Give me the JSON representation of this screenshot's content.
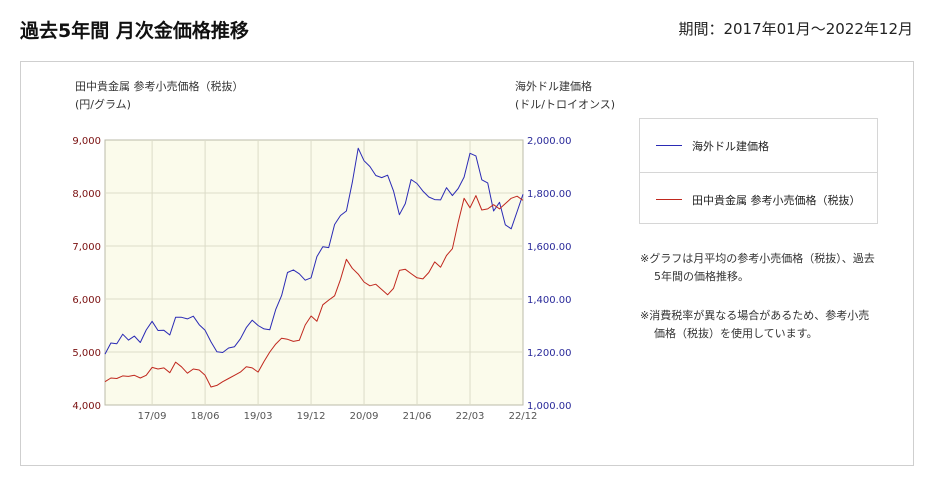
{
  "header": {
    "title": "過去5年間 月次金価格推移",
    "period": "期間：2017年01月～2022年12月"
  },
  "notes": [
    "※グラフは月平均の参考小売価格（税抜）、過去5年間の価格推移。",
    "※消費税率が異なる場合があるため、参考小売価格（税抜）を使用しています。"
  ],
  "colors": {
    "plot_bg": "#fbfbeb",
    "grid": "#dcdcc8",
    "usd": "#2b2bb5",
    "jpy": "#c0281e",
    "left_tick": "#7a1010",
    "right_tick": "#2a2a9a"
  },
  "chart_data": {
    "type": "line",
    "left_axis": {
      "title": "田中貴金属 参考小売価格（税抜）",
      "unit": "(円/グラム)",
      "range": [
        4000,
        9000
      ],
      "ticks": [
        "4,000",
        "5,000",
        "6,000",
        "7,000",
        "8,000",
        "9,000"
      ]
    },
    "right_axis": {
      "title": "海外ドル建価格",
      "unit": "(ドル/トロイオンス)",
      "range": [
        1000,
        2000
      ],
      "ticks": [
        "1,000.00",
        "1,200.00",
        "1,400.00",
        "1,600.00",
        "1,800.00",
        "2,000.00"
      ]
    },
    "x_ticks": [
      {
        "label": "17/09",
        "month_index": 8
      },
      {
        "label": "18/06",
        "month_index": 17
      },
      {
        "label": "19/03",
        "month_index": 26
      },
      {
        "label": "19/12",
        "month_index": 35
      },
      {
        "label": "20/09",
        "month_index": 44
      },
      {
        "label": "21/06",
        "month_index": 53
      },
      {
        "label": "22/03",
        "month_index": 62
      },
      {
        "label": "22/12",
        "month_index": 71
      }
    ],
    "grid": true,
    "legend_position": "right",
    "series": [
      {
        "name": "海外ドル建価格",
        "axis": "right",
        "values": [
          1192,
          1234,
          1231,
          1267,
          1245,
          1260,
          1236,
          1283,
          1316,
          1281,
          1282,
          1264,
          1331,
          1331,
          1325,
          1335,
          1303,
          1282,
          1238,
          1201,
          1198,
          1215,
          1220,
          1250,
          1292,
          1320,
          1300,
          1287,
          1284,
          1360,
          1413,
          1500,
          1510,
          1495,
          1471,
          1480,
          1560,
          1597,
          1594,
          1681,
          1715,
          1732,
          1840,
          1969,
          1922,
          1900,
          1866,
          1858,
          1867,
          1808,
          1718,
          1760,
          1851,
          1836,
          1807,
          1785,
          1775,
          1774,
          1820,
          1790,
          1817,
          1860,
          1950,
          1940,
          1850,
          1838,
          1732,
          1765,
          1680,
          1665,
          1730,
          1795
        ]
      },
      {
        "name": "田中貴金属 参考小売価格（税抜）",
        "axis": "left",
        "values": [
          4440,
          4510,
          4500,
          4550,
          4540,
          4560,
          4510,
          4560,
          4710,
          4680,
          4700,
          4610,
          4810,
          4720,
          4600,
          4680,
          4660,
          4560,
          4340,
          4370,
          4440,
          4500,
          4560,
          4620,
          4720,
          4700,
          4620,
          4820,
          5000,
          5150,
          5260,
          5240,
          5200,
          5220,
          5510,
          5680,
          5580,
          5890,
          5980,
          6060,
          6370,
          6750,
          6580,
          6470,
          6320,
          6250,
          6280,
          6180,
          6080,
          6200,
          6540,
          6560,
          6480,
          6400,
          6380,
          6500,
          6700,
          6600,
          6820,
          6950,
          7450,
          7900,
          7720,
          7950,
          7680,
          7700,
          7780,
          7700,
          7800,
          7900,
          7940,
          7860
        ]
      }
    ]
  }
}
